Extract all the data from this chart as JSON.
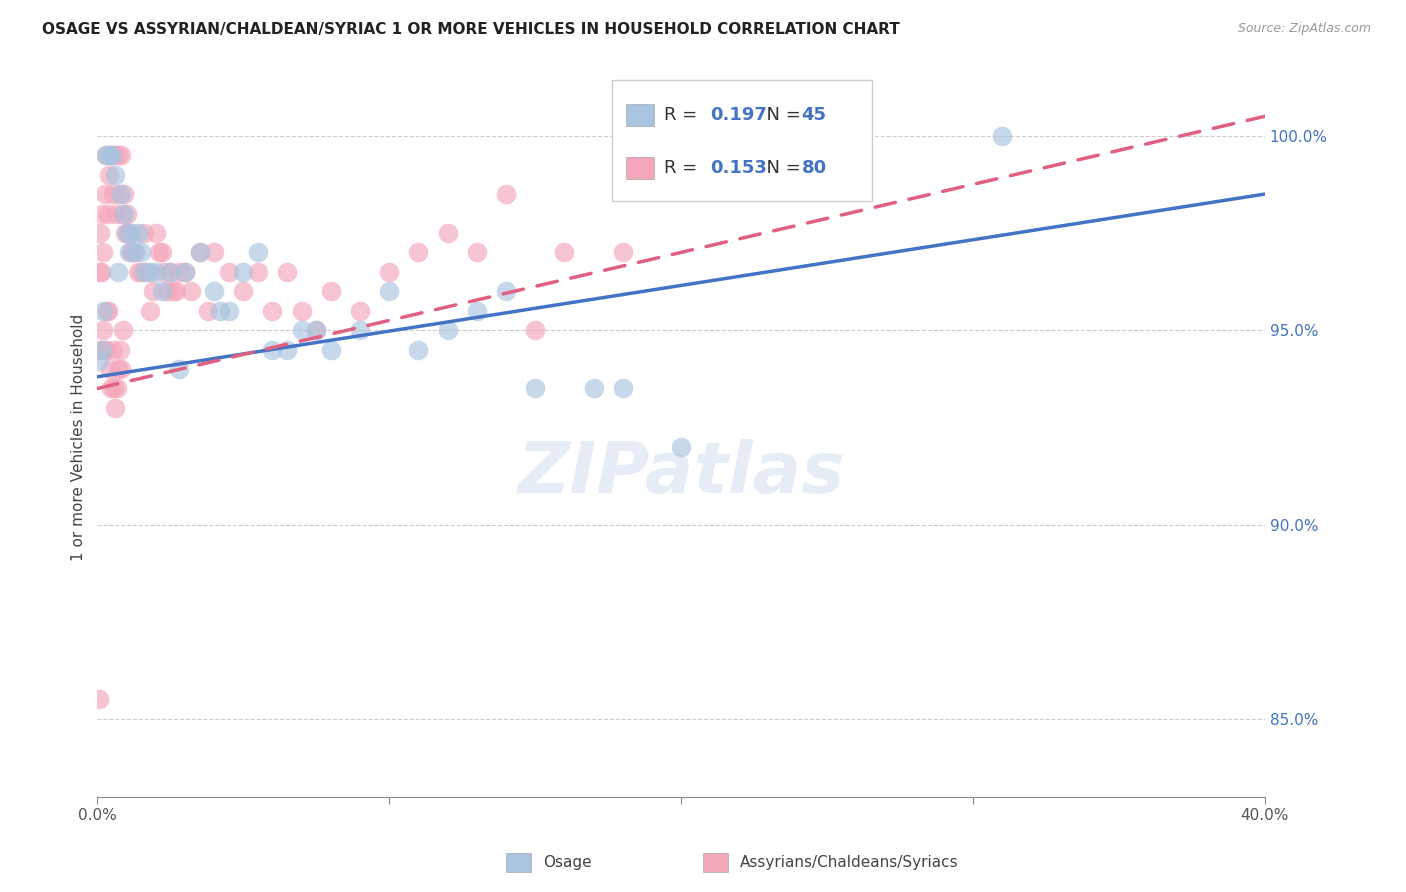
{
  "title": "OSAGE VS ASSYRIAN/CHALDEAN/SYRIAC 1 OR MORE VEHICLES IN HOUSEHOLD CORRELATION CHART",
  "source": "Source: ZipAtlas.com",
  "ylabel": "1 or more Vehicles in Household",
  "legend_label1": "Osage",
  "legend_label2": "Assyrians/Chaldeans/Syriacs",
  "R1": 0.197,
  "N1": 45,
  "R2": 0.153,
  "N2": 80,
  "color1": "#a8c4e0",
  "color2": "#f4a7b9",
  "line_color1": "#4472c4",
  "line_color2": "#e06080",
  "xlim": [
    0.0,
    40.0
  ],
  "ylim": [
    83.0,
    101.5
  ],
  "ytick_vals": [
    85.0,
    90.0,
    95.0,
    100.0
  ],
  "ytick_labels": [
    "85.0%",
    "90.0%",
    "95.0%",
    "100.0%"
  ],
  "xtick_vals": [
    0,
    10,
    20,
    30,
    40
  ],
  "xtick_edge_labels": {
    "0": "0.0%",
    "40": "40.0%"
  },
  "line1_x0": 0.0,
  "line1_y0": 93.8,
  "line1_x1": 40.0,
  "line1_y1": 98.5,
  "line2_x0": 0.0,
  "line2_y0": 93.5,
  "line2_x1": 40.0,
  "line2_y1": 100.5,
  "osage_x": [
    0.3,
    0.4,
    0.5,
    0.6,
    0.8,
    0.9,
    1.0,
    1.1,
    1.2,
    1.3,
    1.5,
    1.6,
    1.8,
    2.0,
    2.2,
    2.5,
    3.0,
    3.5,
    4.0,
    4.5,
    5.0,
    5.5,
    6.0,
    6.5,
    7.0,
    8.0,
    9.0,
    10.0,
    11.0,
    12.0,
    13.0,
    14.0,
    15.0,
    17.0,
    20.0,
    0.2,
    0.7,
    1.4,
    2.8,
    4.2,
    7.5,
    0.05,
    0.15,
    31.0,
    18.0
  ],
  "osage_y": [
    99.5,
    99.5,
    99.5,
    99.0,
    98.5,
    98.0,
    97.5,
    97.0,
    97.5,
    97.0,
    97.0,
    96.5,
    96.5,
    96.5,
    96.0,
    96.5,
    96.5,
    97.0,
    96.0,
    95.5,
    96.5,
    97.0,
    94.5,
    94.5,
    95.0,
    94.5,
    95.0,
    96.0,
    94.5,
    95.0,
    95.5,
    96.0,
    93.5,
    93.5,
    92.0,
    95.5,
    96.5,
    97.5,
    94.0,
    95.5,
    95.0,
    94.2,
    94.5,
    100.0,
    93.5
  ],
  "assyrian_x": [
    0.1,
    0.15,
    0.2,
    0.25,
    0.3,
    0.35,
    0.4,
    0.45,
    0.5,
    0.55,
    0.6,
    0.65,
    0.7,
    0.75,
    0.8,
    0.85,
    0.9,
    0.95,
    1.0,
    1.05,
    1.1,
    1.15,
    1.2,
    1.3,
    1.4,
    1.5,
    1.6,
    1.7,
    1.8,
    1.9,
    2.0,
    2.1,
    2.2,
    2.3,
    2.4,
    2.5,
    2.6,
    2.7,
    2.8,
    3.0,
    3.2,
    3.5,
    3.8,
    4.0,
    4.5,
    5.0,
    5.5,
    6.0,
    6.5,
    7.0,
    7.5,
    8.0,
    9.0,
    10.0,
    11.0,
    12.0,
    13.0,
    14.0,
    15.0,
    16.0,
    0.05,
    0.08,
    0.12,
    0.18,
    0.22,
    0.28,
    0.32,
    0.38,
    0.42,
    0.48,
    0.52,
    0.58,
    0.62,
    0.68,
    0.72,
    0.78,
    0.82,
    0.88,
    18.0,
    0.05
  ],
  "assyrian_y": [
    97.5,
    98.0,
    97.0,
    98.5,
    99.5,
    98.0,
    99.0,
    99.5,
    99.5,
    98.5,
    99.5,
    98.0,
    99.5,
    98.5,
    99.5,
    98.0,
    98.5,
    97.5,
    98.0,
    97.5,
    97.5,
    97.0,
    97.0,
    97.0,
    96.5,
    96.5,
    97.5,
    96.5,
    95.5,
    96.0,
    97.5,
    97.0,
    97.0,
    96.5,
    96.0,
    96.5,
    96.0,
    96.0,
    96.5,
    96.5,
    96.0,
    97.0,
    95.5,
    97.0,
    96.5,
    96.0,
    96.5,
    95.5,
    96.5,
    95.5,
    95.0,
    96.0,
    95.5,
    96.5,
    97.0,
    97.5,
    97.0,
    98.5,
    95.0,
    97.0,
    94.5,
    96.5,
    96.5,
    95.0,
    94.5,
    94.5,
    95.5,
    95.5,
    94.0,
    93.5,
    94.5,
    93.5,
    93.0,
    93.5,
    94.0,
    94.5,
    94.0,
    95.0,
    97.0,
    85.5
  ]
}
